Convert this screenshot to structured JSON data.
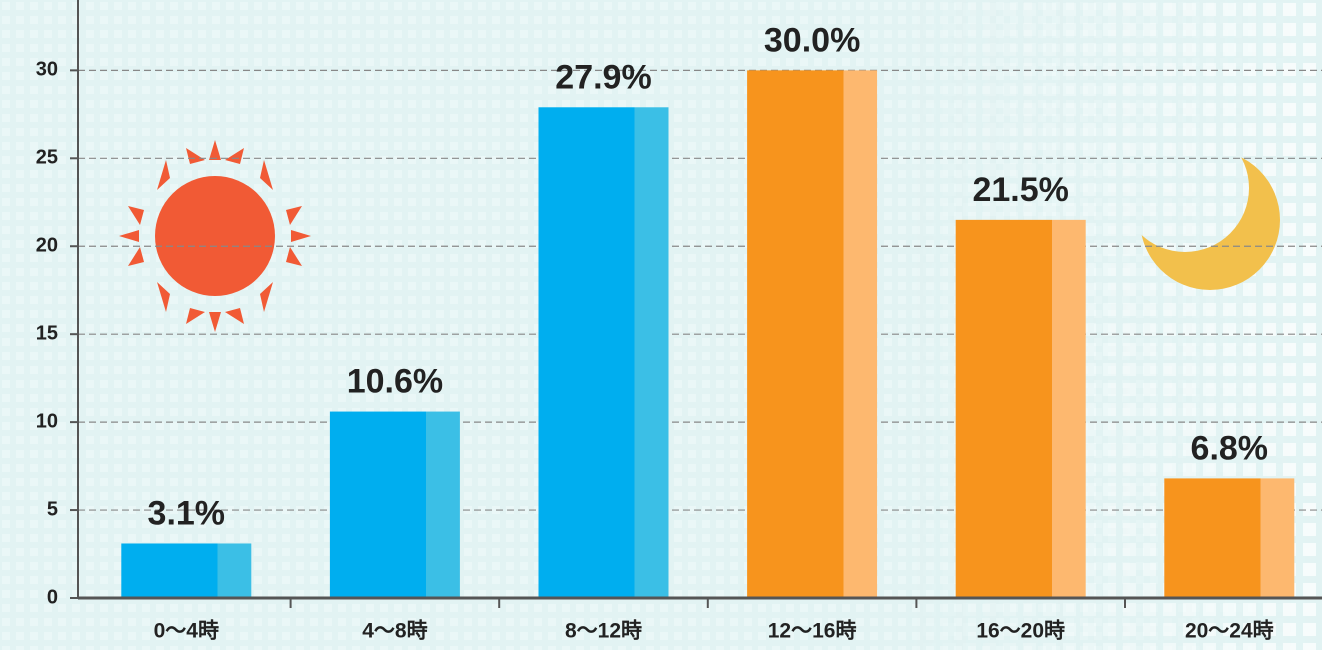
{
  "chart_data": {
    "type": "bar",
    "categories": [
      "0〜4時",
      "4〜8時",
      "8〜12時",
      "12〜16時",
      "16〜20時",
      "20〜24時"
    ],
    "values": [
      3.1,
      10.6,
      27.9,
      30.0,
      21.5,
      6.8
    ],
    "value_labels": [
      "3.1%",
      "10.6%",
      "27.9%",
      "30.0%",
      "21.5%",
      "6.8%"
    ],
    "colors": [
      "#00aeef",
      "#00aeef",
      "#00aeef",
      "#f7941d",
      "#f7941d",
      "#f7941d"
    ],
    "highlight_colors": [
      "#3bbfe6",
      "#3bbfe6",
      "#3bbfe6",
      "#fdb86f",
      "#fdb86f",
      "#fdb86f"
    ],
    "ylim": [
      0,
      34
    ],
    "yticks": [
      0,
      5,
      10,
      15,
      20,
      25,
      30
    ],
    "grid": true
  }
}
